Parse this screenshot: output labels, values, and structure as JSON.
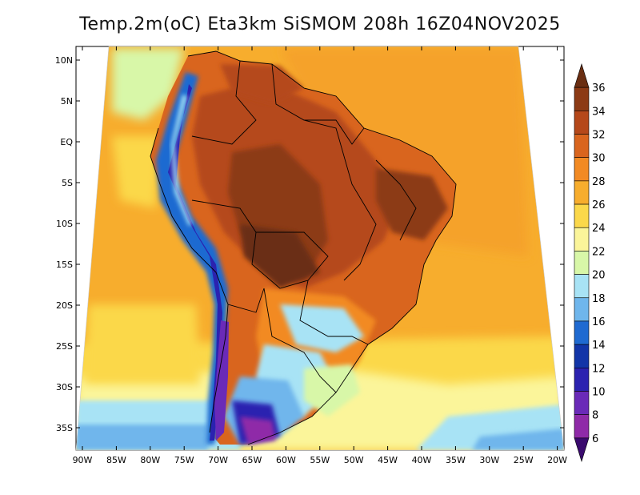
{
  "title": "Temp.2m(oC) Eta3km SiSMOM 208h 16Z04NOV2025",
  "lat_ticks": [
    "10N",
    "5N",
    "EQ",
    "5S",
    "10S",
    "15S",
    "20S",
    "25S",
    "30S",
    "35S"
  ],
  "lon_ticks": [
    "90W",
    "85W",
    "80W",
    "75W",
    "70W",
    "65W",
    "60W",
    "55W",
    "50W",
    "45W",
    "40W",
    "35W",
    "30W",
    "25W",
    "20W"
  ],
  "colorbar": {
    "labels": [
      "36",
      "34",
      "32",
      "30",
      "28",
      "26",
      "24",
      "22",
      "20",
      "18",
      "16",
      "14",
      "12",
      "10",
      "8",
      "6"
    ],
    "colors": [
      "#6a2e12",
      "#8c3a15",
      "#b5481a",
      "#d9651e",
      "#f28a23",
      "#f7ad2d",
      "#fbd84a",
      "#fbf59a",
      "#d8f7a8",
      "#a8e3f5",
      "#6fb6ec",
      "#1f6ad1",
      "#1235a8",
      "#2b22b0",
      "#6a2ab8",
      "#8f2aa8",
      "#3a0a6e"
    ]
  },
  "chart_data": {
    "type": "heatmap",
    "variable": "Temp.2m(oC)",
    "model": "Eta3km SiSMOM",
    "forecast_hour": "208h",
    "valid_time": "16Z04NOV2025",
    "lon_range": [
      "90W",
      "20W"
    ],
    "lat_range": [
      "10N",
      "35S"
    ],
    "color_scale_min": 6,
    "color_scale_max": 36,
    "color_scale_step": 2
  }
}
